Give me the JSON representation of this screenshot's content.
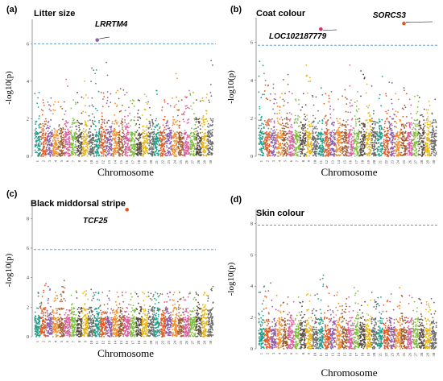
{
  "chart_data": [
    {
      "type": "scatter",
      "panel_label": "(a)",
      "title": "Litter size",
      "xlabel": "Chromosome",
      "ylabel": "-log10(p)",
      "ylim": [
        0,
        7.3
      ],
      "yticks": [
        0,
        2,
        4,
        6
      ],
      "threshold": 6.0,
      "categories": [
        "1",
        "2",
        "3",
        "4",
        "5",
        "6",
        "7",
        "8",
        "9",
        "10",
        "11",
        "12",
        "13",
        "14",
        "15",
        "16",
        "17",
        "18",
        "19",
        "20",
        "21",
        "22",
        "23",
        "24",
        "25",
        "26",
        "27",
        "28",
        "29",
        "30"
      ],
      "peak_heights": [
        3.4,
        3.0,
        3.1,
        2.9,
        2.9,
        4.1,
        3.0,
        3.4,
        4.0,
        4.7,
        4.6,
        3.4,
        5.0,
        3.5,
        3.6,
        3.4,
        3.0,
        3.0,
        3.3,
        2.9,
        3.5,
        3.0,
        2.8,
        4.4,
        3.0,
        3.5,
        3.4,
        3.0,
        3.3,
        5.1
      ],
      "highlights": [
        {
          "chromosome": "11",
          "value": 6.2,
          "label": "LRRTM4"
        }
      ]
    },
    {
      "type": "scatter",
      "panel_label": "(b)",
      "title": "Coat colour",
      "xlabel": "Chromosome",
      "ylabel": "-log10(p)",
      "ylim": [
        0,
        7.3
      ],
      "yticks": [
        0,
        2,
        4,
        6
      ],
      "threshold": 5.85,
      "categories": [
        "1",
        "2",
        "3",
        "4",
        "5",
        "6",
        "7",
        "8",
        "9",
        "10",
        "11",
        "12",
        "13",
        "14",
        "15",
        "16",
        "17",
        "18",
        "19",
        "20",
        "21",
        "22",
        "23",
        "24",
        "25",
        "26",
        "27",
        "28",
        "29",
        "30"
      ],
      "peak_heights": [
        5.0,
        4.0,
        3.8,
        3.3,
        4.3,
        3.4,
        3.0,
        3.3,
        4.8,
        3.2,
        3.6,
        3.3,
        3.4,
        3.0,
        3.5,
        4.8,
        3.4,
        4.5,
        3.8,
        3.7,
        4.2,
        3.3,
        3.9,
        3.3,
        3.6,
        3.0,
        3.2,
        3.1,
        2.9,
        3.0
      ],
      "highlights": [
        {
          "chromosome": "11",
          "value": 6.7,
          "label": "LOC102187779"
        },
        {
          "chromosome": "25",
          "value": 7.0,
          "label": "SORCS3"
        }
      ]
    },
    {
      "type": "scatter",
      "panel_label": "(c)",
      "title": "Black middorsal stripe",
      "xlabel": "Chromosome",
      "ylabel": "-log10(p)",
      "ylim": [
        0,
        9.0
      ],
      "yticks": [
        0,
        2,
        4,
        6,
        8
      ],
      "threshold": 5.9,
      "categories": [
        "1",
        "2",
        "3",
        "4",
        "5",
        "6",
        "7",
        "8",
        "9",
        "10",
        "11",
        "12",
        "13",
        "14",
        "15",
        "16",
        "17",
        "18",
        "19",
        "20",
        "21",
        "22",
        "23",
        "24",
        "25",
        "26",
        "27",
        "28",
        "29",
        "30"
      ],
      "peak_heights": [
        3.0,
        3.6,
        3.4,
        3.0,
        3.8,
        3.3,
        3.1,
        3.0,
        3.1,
        3.2,
        3.0,
        3.0,
        3.1,
        3.0,
        3.0,
        3.0,
        3.0,
        2.9,
        3.0,
        3.0,
        3.0,
        2.9,
        3.0,
        3.0,
        3.0,
        2.9,
        3.0,
        3.0,
        3.0,
        3.4
      ],
      "highlights": [
        {
          "chromosome": "16",
          "value": 8.6,
          "label": "TCF25"
        }
      ]
    },
    {
      "type": "scatter",
      "panel_label": "(d)",
      "title": "Skin colour",
      "xlabel": "Chromosome",
      "ylabel": "-log10(p)",
      "ylim": [
        0,
        8.9
      ],
      "yticks": [
        0,
        2,
        4,
        6,
        8
      ],
      "threshold": 7.9,
      "categories": [
        "1",
        "2",
        "3",
        "4",
        "5",
        "6",
        "7",
        "8",
        "9",
        "10",
        "11",
        "12",
        "13",
        "14",
        "15",
        "16",
        "17",
        "18",
        "19",
        "20",
        "21",
        "22",
        "23",
        "24",
        "25",
        "26",
        "27",
        "28",
        "29",
        "30"
      ],
      "peak_heights": [
        4.0,
        3.7,
        4.2,
        3.4,
        3.3,
        3.0,
        3.3,
        3.0,
        3.5,
        3.5,
        4.7,
        4.0,
        3.4,
        3.6,
        3.2,
        3.3,
        3.9,
        3.0,
        3.1,
        3.6,
        3.3,
        3.1,
        3.5,
        3.9,
        3.4,
        3.4,
        3.0,
        3.2,
        3.0,
        3.2
      ],
      "highlights": []
    }
  ],
  "colors": {
    "palette": [
      "#1f9e89",
      "#e25822",
      "#8e5fa8",
      "#f28e2b",
      "#9f5c30",
      "#d95f9c",
      "#7fbf3f",
      "#5a4a42",
      "#e7b416",
      "#6b6b6b"
    ],
    "threshold_line": "#4a90c8",
    "highlight": "#e25822",
    "highlight_pink": "#d6336c"
  }
}
